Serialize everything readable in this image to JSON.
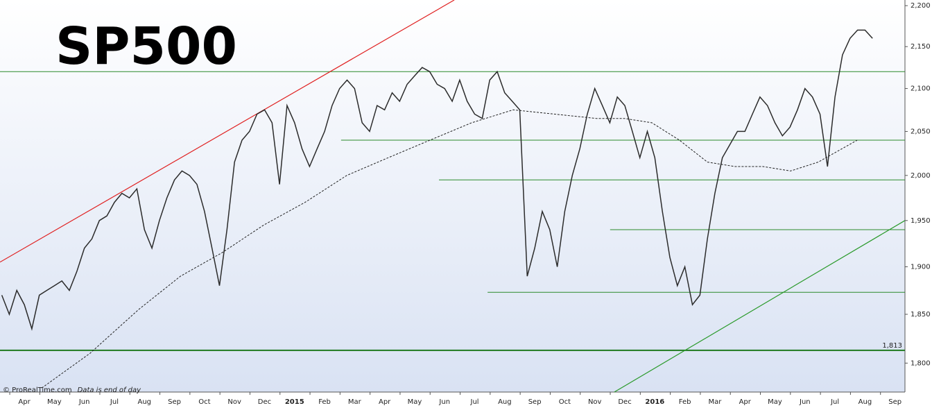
{
  "chart_data": {
    "type": "line",
    "title": "SP500",
    "source": "© ProRealTime.com",
    "note": "Data is end of day",
    "log_scale": true,
    "xlim": [
      -0.81,
      29.33
    ],
    "ylim": [
      1771,
      2207
    ],
    "xticks": [
      {
        "value": 0,
        "label": "Apr"
      },
      {
        "value": 1,
        "label": "May"
      },
      {
        "value": 2,
        "label": "Jun"
      },
      {
        "value": 3,
        "label": "Jul"
      },
      {
        "value": 4,
        "label": "Aug"
      },
      {
        "value": 5,
        "label": "Sep"
      },
      {
        "value": 6,
        "label": "Oct"
      },
      {
        "value": 7,
        "label": "Nov"
      },
      {
        "value": 8,
        "label": "Dec"
      },
      {
        "value": 9,
        "label": "2015"
      },
      {
        "value": 10,
        "label": "Feb"
      },
      {
        "value": 11,
        "label": "Mar"
      },
      {
        "value": 12,
        "label": "Apr"
      },
      {
        "value": 13,
        "label": "May"
      },
      {
        "value": 14,
        "label": "Jun"
      },
      {
        "value": 15,
        "label": "Jul"
      },
      {
        "value": 16,
        "label": "Aug"
      },
      {
        "value": 17,
        "label": "Sep"
      },
      {
        "value": 18,
        "label": "Oct"
      },
      {
        "value": 19,
        "label": "Nov"
      },
      {
        "value": 20,
        "label": "Dec"
      },
      {
        "value": 21,
        "label": "2016"
      },
      {
        "value": 22,
        "label": "Feb"
      },
      {
        "value": 23,
        "label": "Mar"
      },
      {
        "value": 24,
        "label": "Apr"
      },
      {
        "value": 25,
        "label": "May"
      },
      {
        "value": 26,
        "label": "Jun"
      },
      {
        "value": 27,
        "label": "Jul"
      },
      {
        "value": 28,
        "label": "Aug"
      },
      {
        "value": 29,
        "label": "Sep"
      }
    ],
    "yticks": [
      {
        "value": 1800,
        "label": "1,800"
      },
      {
        "value": 1850,
        "label": "1,850"
      },
      {
        "value": 1900,
        "label": "1,900"
      },
      {
        "value": 1950,
        "label": "1,950"
      },
      {
        "value": 2000,
        "label": "2,000"
      },
      {
        "value": 2050,
        "label": "2,050"
      },
      {
        "value": 2100,
        "label": "2,100"
      },
      {
        "value": 2150,
        "label": "2,150"
      },
      {
        "value": 2200,
        "label": "2,200"
      }
    ],
    "series": [
      {
        "color": "#2b2b2b",
        "x": [
          -0.75,
          -0.5,
          -0.25,
          0,
          0.25,
          0.5,
          0.75,
          1,
          1.25,
          1.5,
          1.75,
          2,
          2.25,
          2.5,
          2.75,
          3,
          3.25,
          3.5,
          3.75,
          4,
          4.25,
          4.5,
          4.75,
          5,
          5.25,
          5.5,
          5.75,
          6,
          6.25,
          6.5,
          6.75,
          7,
          7.25,
          7.5,
          7.75,
          8,
          8.25,
          8.5,
          8.75,
          9,
          9.25,
          9.5,
          9.75,
          10,
          10.25,
          10.5,
          10.75,
          11,
          11.25,
          11.5,
          11.75,
          12,
          12.25,
          12.5,
          12.75,
          13,
          13.25,
          13.5,
          13.75,
          14,
          14.25,
          14.5,
          14.75,
          15,
          15.25,
          15.5,
          15.75,
          16,
          16.25,
          16.5,
          16.75,
          17,
          17.25,
          17.5,
          17.75,
          18,
          18.25,
          18.5,
          18.75,
          19,
          19.25,
          19.5,
          19.75,
          20,
          20.25,
          20.5,
          20.75,
          21,
          21.25,
          21.5,
          21.75,
          22,
          22.25,
          22.5,
          22.75,
          23,
          23.25,
          23.5,
          23.75,
          24,
          24.25,
          24.5,
          24.75,
          25,
          25.25,
          25.5,
          25.75,
          26,
          26.25,
          26.5,
          26.75,
          27,
          27.25,
          27.5,
          27.75,
          28,
          28.25
        ],
        "values": [
          1870,
          1850,
          1875,
          1860,
          1835,
          1870,
          1875,
          1880,
          1885,
          1875,
          1895,
          1920,
          1930,
          1950,
          1955,
          1970,
          1980,
          1975,
          1985,
          1940,
          1920,
          1950,
          1975,
          1995,
          2005,
          2000,
          1990,
          1960,
          1920,
          1880,
          1940,
          2015,
          2040,
          2050,
          2070,
          2075,
          2060,
          1990,
          2080,
          2060,
          2030,
          2010,
          2030,
          2050,
          2080,
          2100,
          2110,
          2100,
          2060,
          2050,
          2080,
          2075,
          2095,
          2085,
          2105,
          2115,
          2125,
          2120,
          2105,
          2100,
          2085,
          2110,
          2085,
          2070,
          2065,
          2110,
          2120,
          2095,
          2085,
          2075,
          1890,
          1920,
          1960,
          1940,
          1900,
          1960,
          2000,
          2030,
          2070,
          2100,
          2080,
          2060,
          2090,
          2080,
          2050,
          2020,
          2050,
          2020,
          1960,
          1910,
          1880,
          1900,
          1860,
          1870,
          1930,
          1980,
          2020,
          2035,
          2050,
          2050,
          2070,
          2090,
          2080,
          2060,
          2045,
          2055,
          2075,
          2100,
          2090,
          2070,
          2010,
          2090,
          2140,
          2160,
          2170,
          2170,
          2160
        ]
      },
      {
        "color": "#222222",
        "dashed": true,
        "x": [
          0.58,
          2.19,
          3.81,
          5.2,
          6.58,
          7.97,
          9.35,
          10.74,
          12.12,
          13.51,
          14.9,
          16.28,
          17.67,
          19.05,
          19.98,
          20.9,
          21.82,
          22.75,
          23.67,
          24.6,
          25.52,
          26.44,
          27.74
        ],
        "values": [
          1775,
          1810,
          1855,
          1890,
          1915,
          1945,
          1970,
          2000,
          2020,
          2040,
          2060,
          2075,
          2070,
          2065,
          2065,
          2060,
          2040,
          2015,
          2010,
          2010,
          2005,
          2015,
          2040
        ]
      }
    ],
    "levels": [
      {
        "value": 2120,
        "x": [
          -0.81,
          29.33
        ],
        "color": "#2a8a2a"
      },
      {
        "value": 2040,
        "x": [
          10.55,
          29.33
        ],
        "color": "#2a8a2a"
      },
      {
        "value": 1995,
        "x": [
          13.81,
          29.33
        ],
        "color": "#2a8a2a"
      },
      {
        "value": 1940,
        "x": [
          19.51,
          29.33
        ],
        "color": "#2a8a2a"
      },
      {
        "value": 1873,
        "x": [
          15.43,
          29.33
        ],
        "color": "#2a8a2a"
      },
      {
        "value": 1813,
        "x": [
          -0.81,
          29.33
        ],
        "color": "#1f7a1f",
        "label": "1,813",
        "bold": true
      }
    ],
    "trendlines": [
      {
        "color": "#e02020",
        "x": [
          -0.81,
          14.32
        ],
        "values": [
          1905,
          2207
        ]
      },
      {
        "color": "#2a9a2a",
        "x": [
          19.65,
          29.33
        ],
        "values": [
          1771,
          1950
        ]
      }
    ]
  }
}
